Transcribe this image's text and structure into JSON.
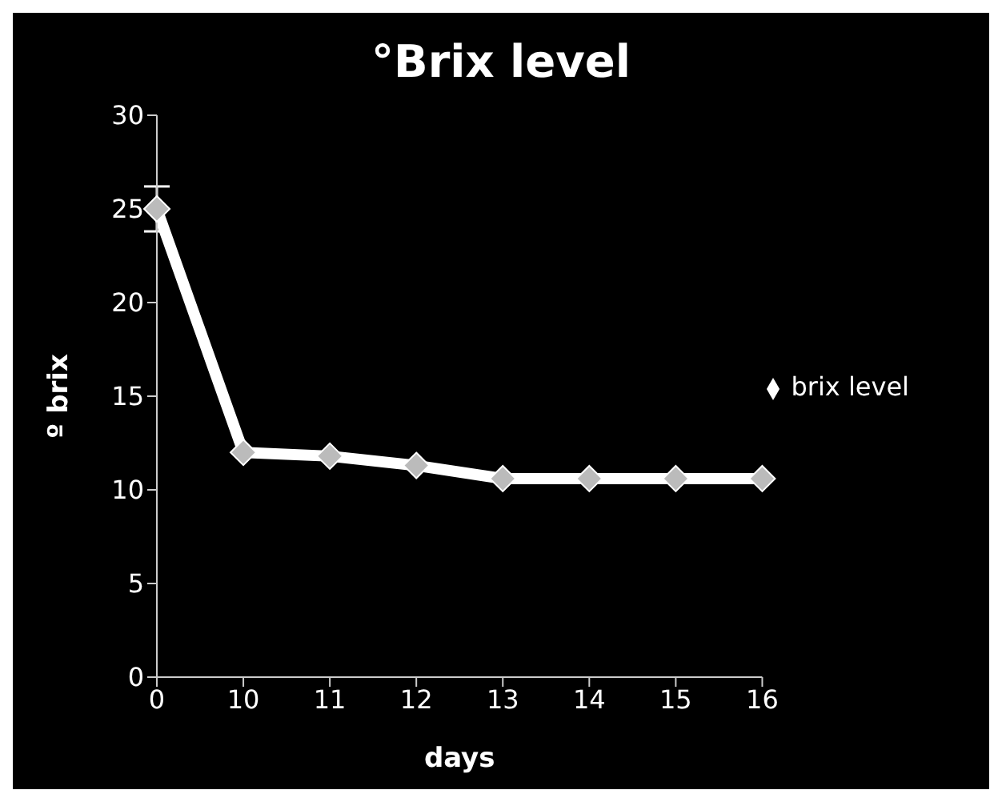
{
  "chart_data": {
    "type": "line",
    "title": "°Brix level",
    "xlabel": "days",
    "ylabel": "º brix",
    "categories": [
      "0",
      "10",
      "11",
      "12",
      "13",
      "14",
      "15",
      "16"
    ],
    "series": [
      {
        "name": "brix level",
        "color": "#ffffff",
        "values": [
          25,
          12,
          11.8,
          11.3,
          10.6,
          10.6,
          10.6,
          10.6
        ],
        "errors": [
          1.2,
          null,
          null,
          null,
          null,
          null,
          null,
          null
        ]
      }
    ],
    "ylim": [
      0,
      30
    ],
    "yticks": [
      0,
      5,
      10,
      15,
      20,
      25,
      30
    ],
    "grid": false,
    "legend": "right",
    "marker": "diamond",
    "line_style": "solid"
  }
}
